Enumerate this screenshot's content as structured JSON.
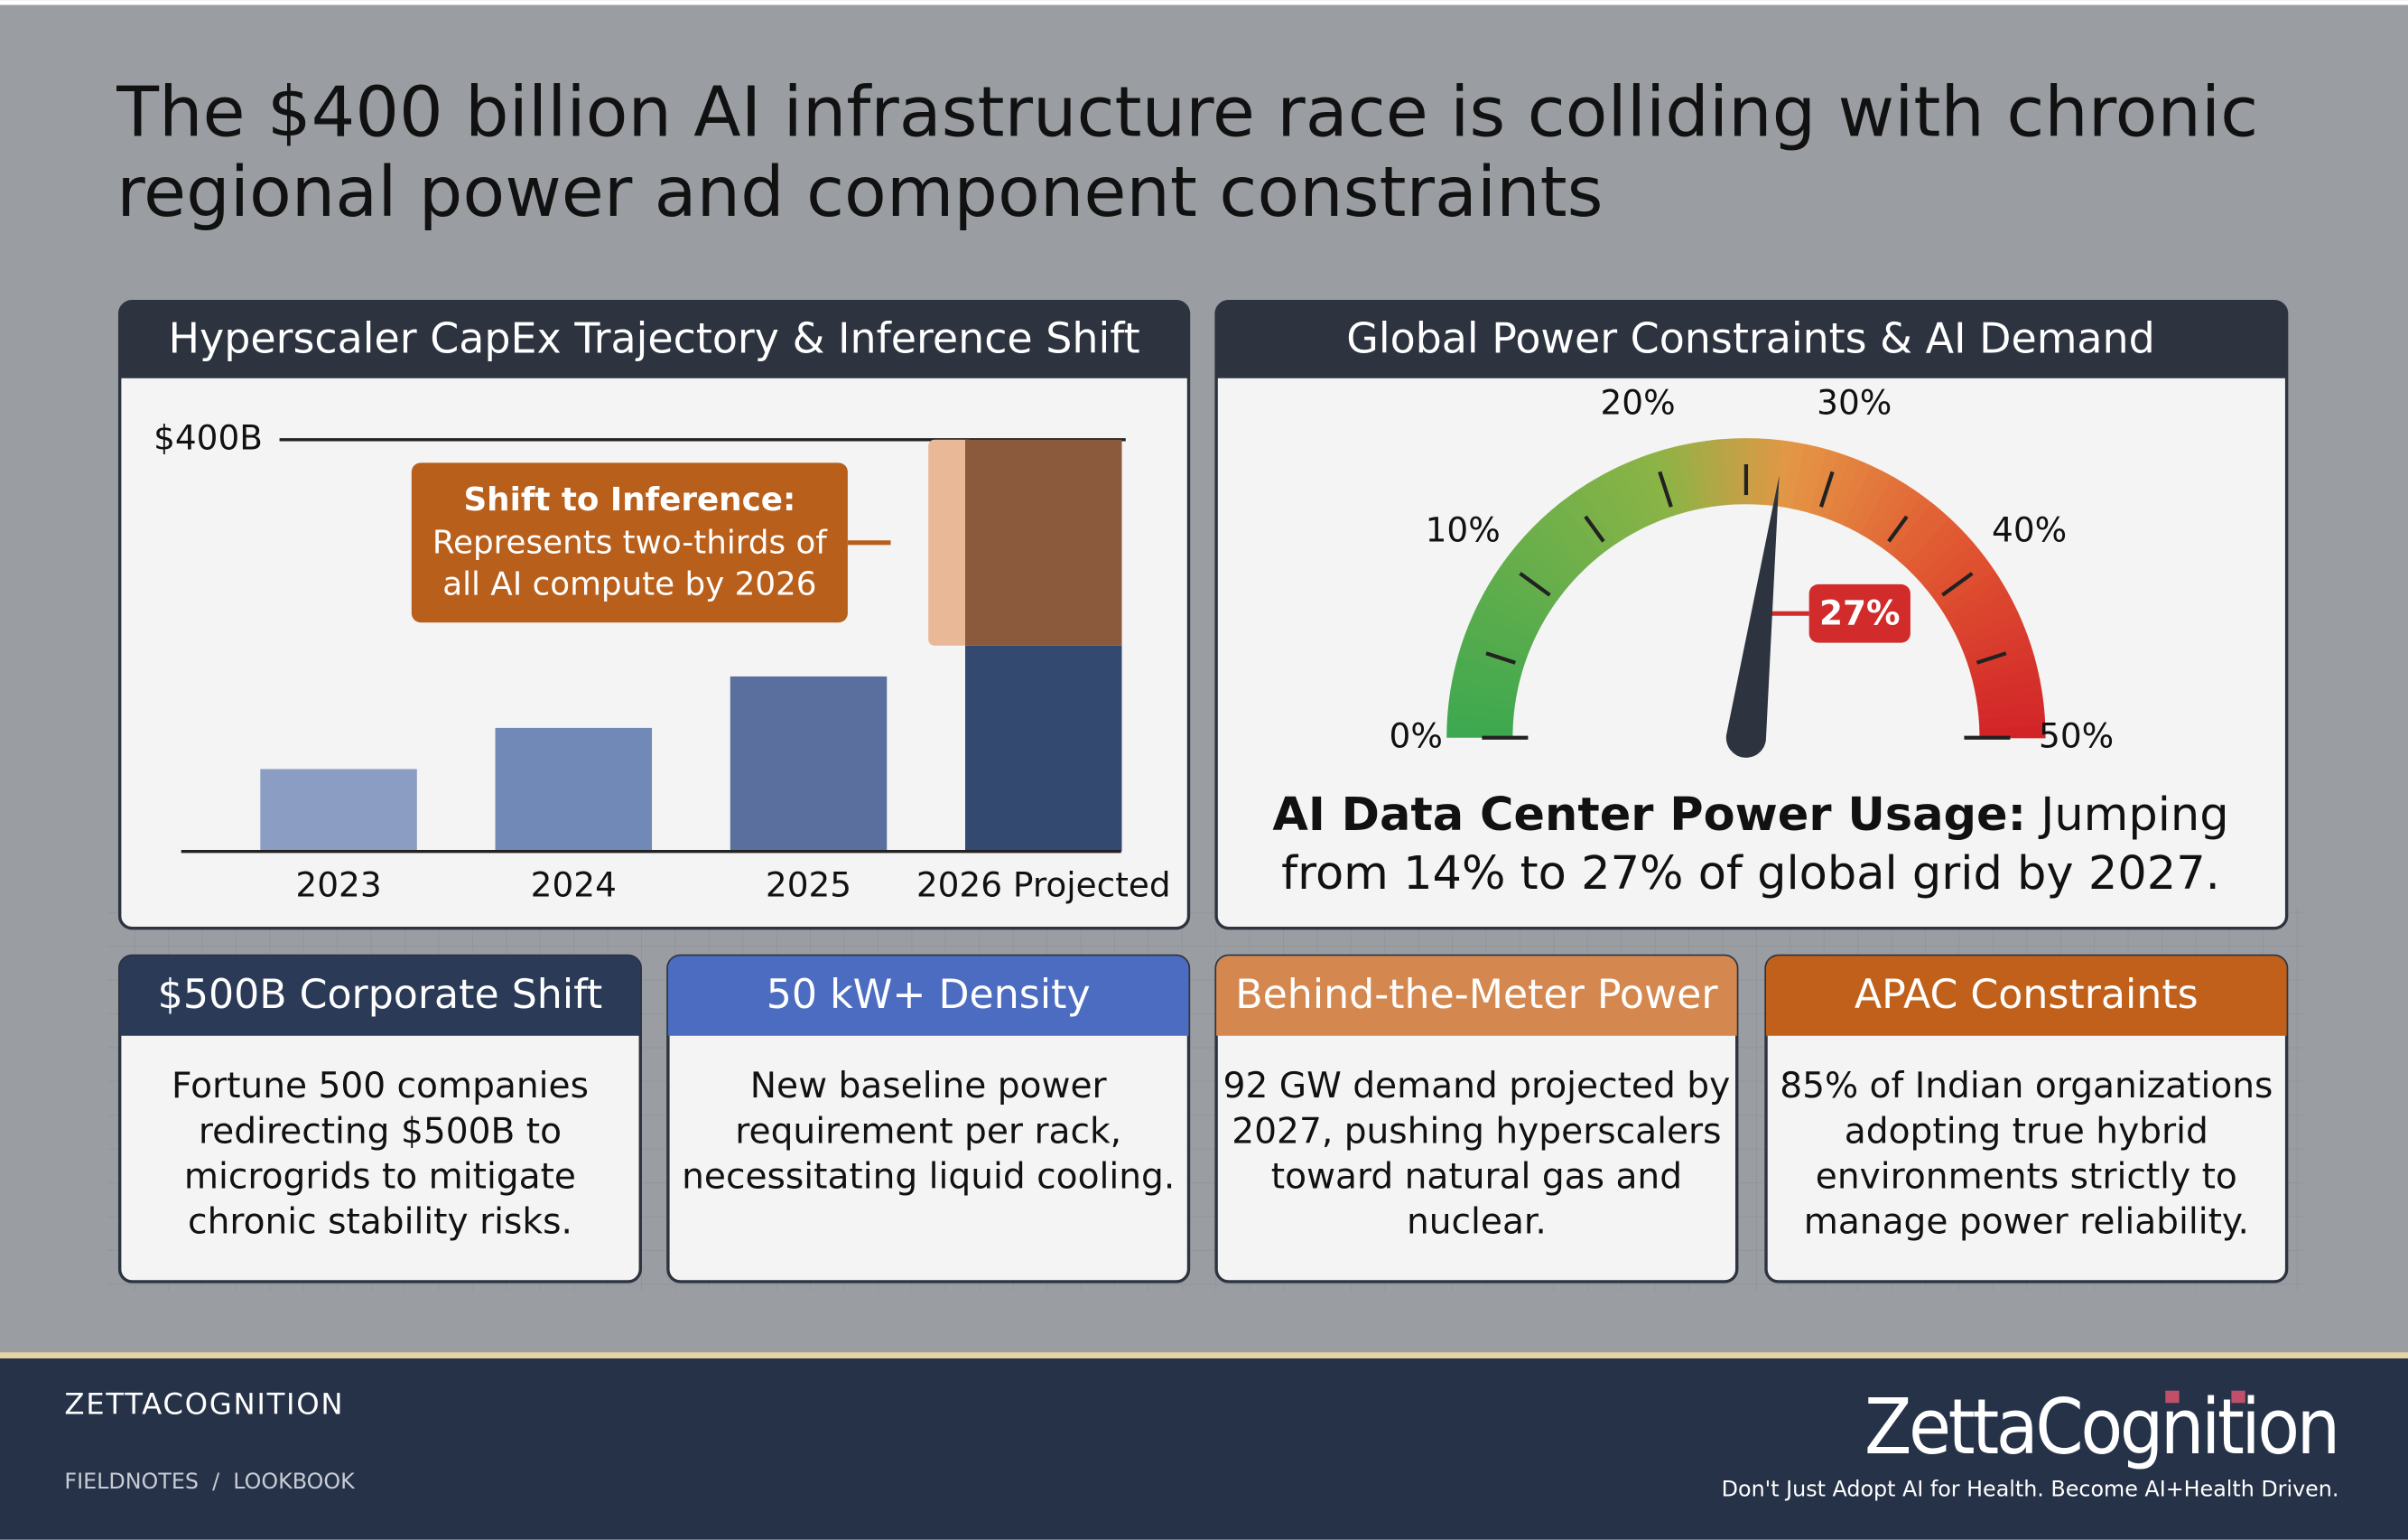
{
  "header": {
    "title": [
      "The $400 billion AI infrastructure race is colliding with chronic",
      "regional power and component constraints"
    ]
  },
  "chart_data": [
    {
      "type": "bar",
      "title": "Hyperscaler CapEx Trajectory & Inference Shift",
      "categories": [
        "2023",
        "2024",
        "2025",
        "2026 Projected"
      ],
      "series": [
        {
          "colors": [
            "#8b9dc3",
            "#7189b6",
            "#5a6f9e",
            "#34496f"
          ],
          "values": [
            80,
            120,
            170,
            200
          ]
        },
        {
          "color": "#8b5a3c",
          "values": [
            null,
            null,
            null,
            200
          ]
        }
      ],
      "ylim": [
        0,
        400
      ],
      "yticks": [
        {
          "value": 400,
          "label": "$400B"
        }
      ],
      "annotation": {
        "title": "Shift to Inference:",
        "lines": [
          "Represents two-thirds of",
          "all AI compute by 2026"
        ]
      }
    },
    {
      "type": "gauge",
      "title": "Global Power Constraints & AI Demand",
      "value": 27,
      "value_label": "27%",
      "ylim": [
        0,
        50
      ],
      "yticks": [
        {
          "value": 0,
          "label": "0%"
        },
        {
          "value": 10,
          "label": "10%"
        },
        {
          "value": 20,
          "label": "20%"
        },
        {
          "value": 30,
          "label": "30%"
        },
        {
          "value": 40,
          "label": "40%"
        },
        {
          "value": 50,
          "label": "50%"
        }
      ],
      "caption": {
        "bold": "AI Data Center Power Usage:",
        "lines": [
          " Jumping",
          "from 14% to 27% of global grid by 2027."
        ]
      }
    }
  ],
  "cards": [
    {
      "title": "$500B Corporate Shift",
      "color": "#2a3a57",
      "lines": [
        "Fortune 500 companies",
        "redirecting $500B to",
        "microgrids to mitigate",
        "chronic stability risks."
      ]
    },
    {
      "title": "50 kW+ Density",
      "color": "#4b6cc0",
      "lines": [
        "New baseline power",
        "requirement per rack,",
        "necessitating liquid cooling."
      ]
    },
    {
      "title": "Behind-the-Meter Power",
      "color": "#d4884f",
      "lines": [
        "92 GW demand projected by",
        "2027, pushing hyperscalers",
        "toward natural gas and",
        "nuclear."
      ]
    },
    {
      "title": "APAC Constraints",
      "color": "#c0601a",
      "lines": [
        "85% of Indian organizations",
        "adopting true hybrid",
        "environments strictly to",
        "manage power reliability."
      ]
    }
  ],
  "footer": {
    "brand": "ZETTACOGNITION",
    "nav": "FIELDNOTES  /  LOOKBOOK",
    "logo": "ZettaCognition",
    "tagline": "Don't Just Adopt AI for Health. Become AI+Health Driven."
  }
}
